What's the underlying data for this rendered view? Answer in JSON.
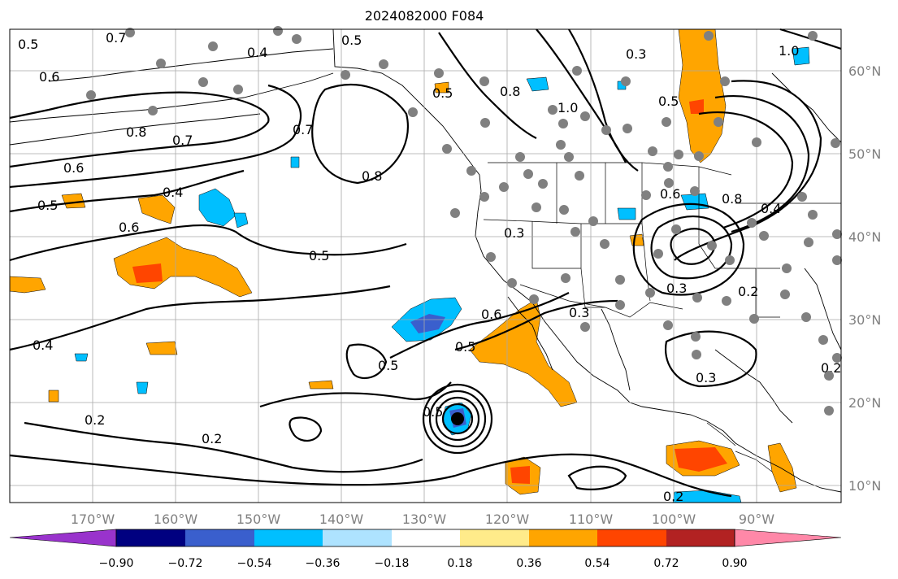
{
  "title": "2024082000 F084",
  "colors": {
    "neg": [
      "#9933cc",
      "#000080",
      "#3a5fcd",
      "#00bfff",
      "#aee3ff"
    ],
    "zero": "#ffffff",
    "pos": [
      "#ffeb8a",
      "#ffa500",
      "#ff4500",
      "#b22222",
      "#ff88a8"
    ],
    "station": "#808080",
    "contour": "#000000"
  },
  "lon_labels": [
    "170°W",
    "160°W",
    "150°W",
    "140°W",
    "130°W",
    "120°W",
    "110°W",
    "100°W",
    "90°W"
  ],
  "lat_labels": [
    "60°N",
    "50°N",
    "40°N",
    "30°N",
    "20°N",
    "10°N"
  ],
  "colorbar": {
    "ticks": [
      "−0.90",
      "−0.72",
      "−0.54",
      "−0.36",
      "−0.18",
      "0.18",
      "0.36",
      "0.54",
      "0.72",
      "0.90"
    ]
  },
  "contour_labels": {
    "c1": "0.5",
    "c2": "0.6",
    "c3": "0.7",
    "c4": "0.4",
    "c5": "0.5",
    "c6": "0.8",
    "c7": "0.7",
    "c8": "0.6",
    "c9": "0.5",
    "c10": "0.4",
    "c11": "0.6",
    "c12": "0.7",
    "c13": "0.8",
    "c14": "0.5",
    "c15": "0.4",
    "c16": "0.2",
    "c17": "0.2",
    "c18": "0.5",
    "c19": "0.5",
    "c20": "0.6",
    "c21": "0.5",
    "c22": "0.3",
    "c23": "0.8",
    "c24": "1.0",
    "c25": "0.3",
    "c26": "1.0",
    "c27": "0.5",
    "c28": "0.6",
    "c29": "0.3",
    "c30": "0.2",
    "c31": "0.3",
    "c32": "0.2",
    "c33": "0.4",
    "c34": "0.8",
    "c35": "0.2",
    "c36": "0.3",
    "c37": "0.5"
  }
}
